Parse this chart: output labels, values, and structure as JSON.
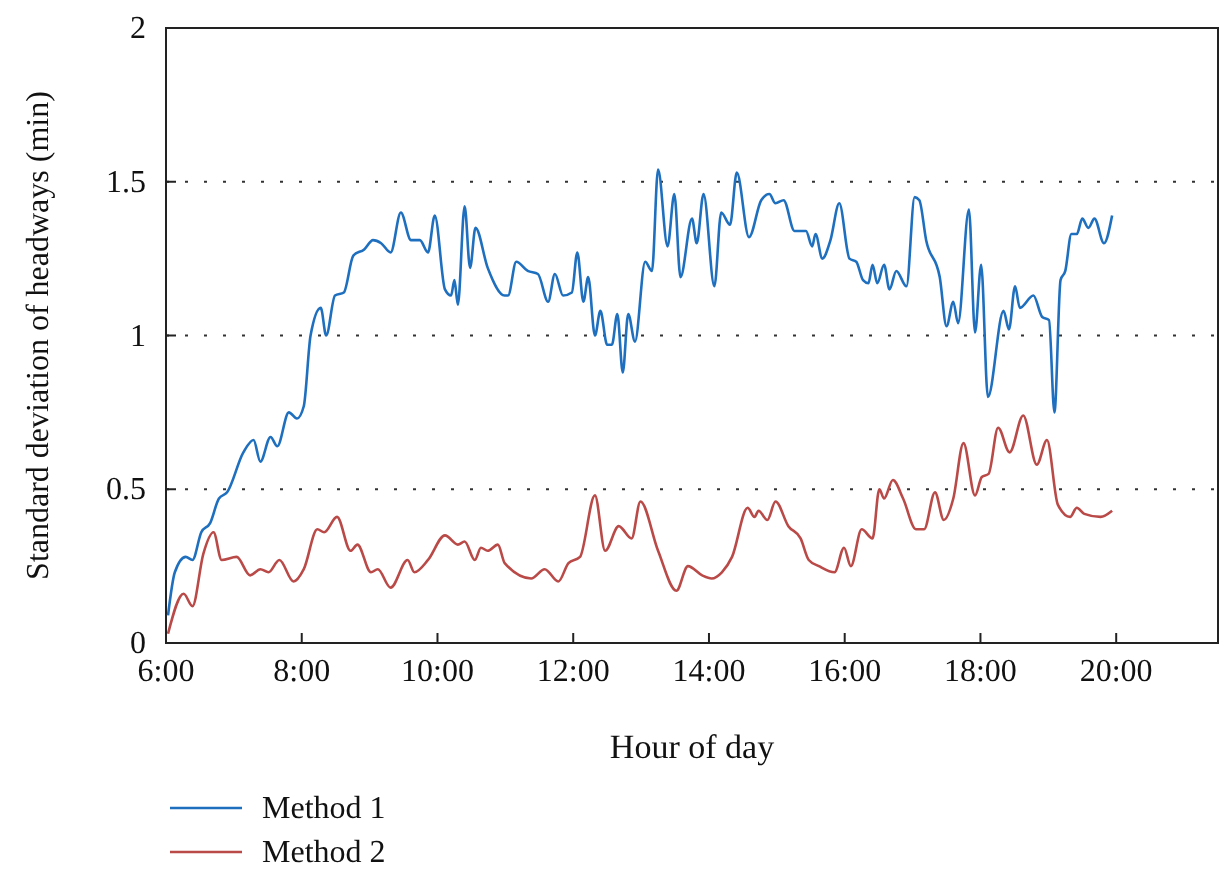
{
  "chart_data": {
    "type": "line",
    "xlabel": "Hour of day",
    "ylabel": "Standard deviation of headways (min)",
    "xlim": [
      6,
      21.5
    ],
    "ylim": [
      0,
      2
    ],
    "xticks": [
      {
        "value": 6,
        "label": "6:00"
      },
      {
        "value": 8,
        "label": "8:00"
      },
      {
        "value": 10,
        "label": "10:00"
      },
      {
        "value": 12,
        "label": "12:00"
      },
      {
        "value": 14,
        "label": "14:00"
      },
      {
        "value": 16,
        "label": "16:00"
      },
      {
        "value": 18,
        "label": "18:00"
      },
      {
        "value": 20,
        "label": "20:00"
      }
    ],
    "yticks": [
      0,
      0.5,
      1,
      1.5,
      2
    ],
    "grid": "y",
    "legend": "bottom left",
    "marker": "none",
    "line_style": "solid",
    "series": [
      {
        "name": "Method 1",
        "color": "#1f6fbf",
        "x": [
          6.03,
          6.13,
          6.29,
          6.39,
          6.52,
          6.65,
          6.78,
          6.9,
          7.14,
          7.29,
          7.39,
          7.54,
          7.64,
          7.81,
          7.93,
          8.03,
          8.13,
          8.28,
          8.36,
          8.49,
          8.62,
          8.76,
          8.92,
          9.05,
          9.17,
          9.31,
          9.46,
          9.61,
          9.74,
          9.86,
          9.96,
          10.11,
          10.2,
          10.25,
          10.3,
          10.4,
          10.48,
          10.56,
          10.74,
          10.99,
          11.04,
          11.16,
          11.33,
          11.48,
          11.63,
          11.73,
          11.85,
          11.98,
          12.06,
          12.15,
          12.22,
          12.32,
          12.4,
          12.5,
          12.57,
          12.65,
          12.73,
          12.81,
          12.91,
          13.06,
          13.16,
          13.25,
          13.39,
          13.49,
          13.58,
          13.75,
          13.82,
          13.92,
          14.08,
          14.18,
          14.31,
          14.41,
          14.59,
          14.77,
          14.89,
          14.98,
          15.1,
          15.26,
          15.43,
          15.52,
          15.57,
          15.67,
          15.79,
          15.92,
          16.07,
          16.17,
          16.27,
          16.35,
          16.41,
          16.48,
          16.58,
          16.66,
          16.76,
          16.91,
          17.03,
          17.1,
          17.2,
          17.4,
          17.5,
          17.6,
          17.67,
          17.83,
          17.92,
          18.01,
          18.11,
          18.34,
          18.42,
          18.51,
          18.58,
          18.78,
          18.91,
          19.01,
          19.09,
          19.18,
          19.25,
          19.34,
          19.42,
          19.5,
          19.59,
          19.68,
          19.82,
          19.94
        ],
        "values": [
          0.09,
          0.23,
          0.28,
          0.27,
          0.36,
          0.39,
          0.47,
          0.49,
          0.62,
          0.66,
          0.59,
          0.67,
          0.64,
          0.75,
          0.73,
          0.77,
          1.0,
          1.09,
          1.0,
          1.13,
          1.14,
          1.26,
          1.28,
          1.31,
          1.3,
          1.27,
          1.4,
          1.31,
          1.31,
          1.27,
          1.39,
          1.15,
          1.13,
          1.18,
          1.1,
          1.42,
          1.22,
          1.35,
          1.22,
          1.13,
          1.13,
          1.24,
          1.21,
          1.2,
          1.11,
          1.2,
          1.13,
          1.14,
          1.27,
          1.11,
          1.19,
          1.0,
          1.08,
          0.97,
          0.97,
          1.07,
          0.88,
          1.07,
          0.98,
          1.24,
          1.21,
          1.54,
          1.29,
          1.46,
          1.19,
          1.38,
          1.3,
          1.46,
          1.16,
          1.4,
          1.36,
          1.53,
          1.32,
          1.44,
          1.46,
          1.43,
          1.44,
          1.34,
          1.34,
          1.29,
          1.33,
          1.25,
          1.31,
          1.43,
          1.25,
          1.24,
          1.18,
          1.17,
          1.23,
          1.17,
          1.23,
          1.15,
          1.21,
          1.16,
          1.45,
          1.44,
          1.31,
          1.19,
          1.03,
          1.11,
          1.04,
          1.41,
          1.01,
          1.23,
          0.8,
          1.08,
          1.02,
          1.16,
          1.09,
          1.13,
          1.06,
          1.05,
          0.75,
          1.18,
          1.21,
          1.33,
          1.33,
          1.38,
          1.35,
          1.38,
          1.3,
          1.39
        ]
      },
      {
        "name": "Method 2",
        "color": "#b94a48",
        "x": [
          6.03,
          6.26,
          6.39,
          6.55,
          6.7,
          6.82,
          7.04,
          7.24,
          7.39,
          7.51,
          7.67,
          7.88,
          8.03,
          8.23,
          8.33,
          8.52,
          8.72,
          8.82,
          9.02,
          9.12,
          9.31,
          9.56,
          9.66,
          9.86,
          10.11,
          10.3,
          10.4,
          10.55,
          10.64,
          10.74,
          10.89,
          10.99,
          11.38,
          11.58,
          11.78,
          11.93,
          12.1,
          12.32,
          12.47,
          12.67,
          12.86,
          12.99,
          13.25,
          13.52,
          13.69,
          13.9,
          14.04,
          14.19,
          14.34,
          14.57,
          14.67,
          14.73,
          14.86,
          14.98,
          15.17,
          15.35,
          15.47,
          15.62,
          15.85,
          15.99,
          16.09,
          16.25,
          16.41,
          16.51,
          16.58,
          16.71,
          16.86,
          17.05,
          17.17,
          17.33,
          17.46,
          17.6,
          17.75,
          17.92,
          18.02,
          18.12,
          18.26,
          18.43,
          18.63,
          18.83,
          18.98,
          19.14,
          19.32,
          19.42,
          19.53,
          19.77,
          19.94
        ],
        "values": [
          0.03,
          0.16,
          0.12,
          0.29,
          0.36,
          0.27,
          0.28,
          0.22,
          0.24,
          0.23,
          0.27,
          0.2,
          0.24,
          0.37,
          0.36,
          0.41,
          0.3,
          0.32,
          0.23,
          0.24,
          0.18,
          0.27,
          0.23,
          0.27,
          0.35,
          0.32,
          0.33,
          0.27,
          0.31,
          0.3,
          0.32,
          0.26,
          0.21,
          0.24,
          0.2,
          0.26,
          0.28,
          0.48,
          0.3,
          0.38,
          0.34,
          0.46,
          0.3,
          0.17,
          0.25,
          0.22,
          0.21,
          0.23,
          0.28,
          0.44,
          0.41,
          0.43,
          0.4,
          0.46,
          0.38,
          0.34,
          0.27,
          0.25,
          0.23,
          0.31,
          0.25,
          0.37,
          0.34,
          0.5,
          0.47,
          0.53,
          0.47,
          0.37,
          0.37,
          0.49,
          0.4,
          0.47,
          0.65,
          0.48,
          0.54,
          0.55,
          0.7,
          0.62,
          0.74,
          0.58,
          0.66,
          0.45,
          0.41,
          0.44,
          0.42,
          0.41,
          0.43
        ]
      }
    ]
  }
}
